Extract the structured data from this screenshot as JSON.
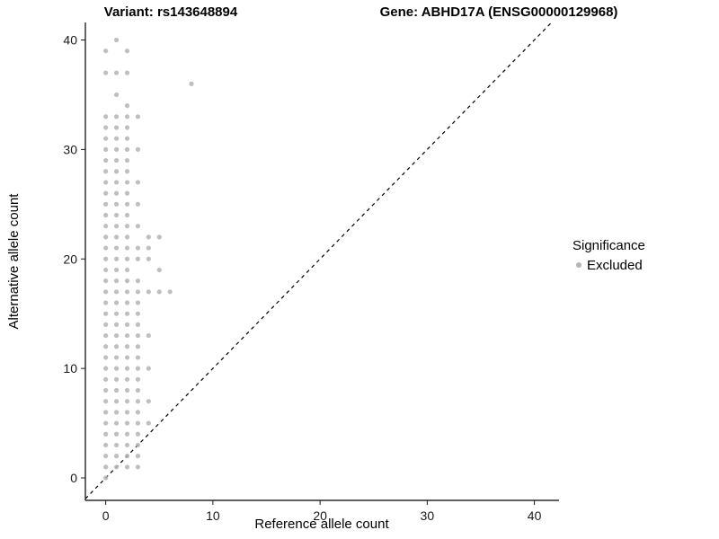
{
  "chart_data": {
    "type": "scatter",
    "title_left": "Variant: rs143648894",
    "title_right": "Gene: ABHD17A (ENSG00000129968)",
    "xlabel": "Reference allele count",
    "ylabel": "Alternative allele count",
    "xlim": [
      -1.9,
      42.3
    ],
    "ylim": [
      -2.05,
      41.6
    ],
    "x_ticks": [
      0,
      10,
      20,
      30,
      40
    ],
    "y_ticks": [
      0,
      10,
      20,
      30,
      40
    ],
    "grid": false,
    "point_color": "#b4b4b4",
    "point_radius": 2.6,
    "identity_line": {
      "style": "dashed",
      "color": "#000000",
      "equation": "y = x"
    },
    "legend": {
      "title": "Significance",
      "position": "right",
      "items": [
        {
          "label": "Excluded",
          "color": "#b4b4b4"
        }
      ]
    },
    "columns": [
      {
        "x": 0,
        "ys": [
          0,
          1,
          2,
          3,
          4,
          5,
          6,
          7,
          8,
          9,
          10,
          11,
          12,
          13,
          14,
          15,
          16,
          17,
          18,
          19,
          20,
          21,
          22,
          23,
          24,
          25,
          26,
          27,
          28,
          29,
          30,
          31,
          32,
          33,
          37,
          39
        ]
      },
      {
        "x": 1,
        "ys": [
          1,
          2,
          3,
          4,
          5,
          6,
          7,
          8,
          9,
          10,
          11,
          12,
          13,
          14,
          15,
          16,
          17,
          18,
          19,
          20,
          21,
          22,
          23,
          24,
          25,
          26,
          27,
          28,
          29,
          30,
          31,
          32,
          33,
          35,
          37,
          40
        ]
      },
      {
        "x": 2,
        "ys": [
          1,
          2,
          3,
          4,
          5,
          6,
          7,
          8,
          9,
          10,
          11,
          12,
          13,
          14,
          15,
          16,
          17,
          18,
          19,
          20,
          21,
          22,
          23,
          24,
          25,
          26,
          27,
          28,
          29,
          30,
          31,
          32,
          33,
          34,
          37,
          39
        ]
      },
      {
        "x": 3,
        "ys": [
          1,
          2,
          3,
          4,
          5,
          6,
          7,
          8,
          9,
          10,
          11,
          12,
          13,
          14,
          15,
          16,
          17,
          18,
          20,
          21,
          23,
          25,
          27,
          30,
          33
        ]
      },
      {
        "x": 4,
        "ys": [
          5,
          7,
          10,
          13,
          17,
          20,
          21,
          22
        ]
      },
      {
        "x": 5,
        "ys": [
          17,
          19,
          22
        ]
      },
      {
        "x": 6,
        "ys": [
          17
        ]
      },
      {
        "x": 8,
        "ys": [
          36
        ]
      }
    ]
  }
}
